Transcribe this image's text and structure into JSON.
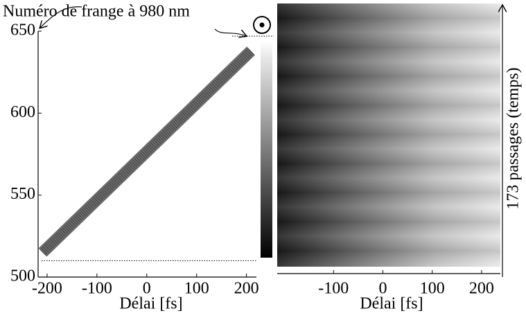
{
  "chart_data": [
    {
      "type": "line",
      "annotation": "Numéro de frange à 980 nm",
      "x": [
        -209,
        209
      ],
      "values": [
        515,
        638
      ],
      "color": "#4a4a4a",
      "xlim": [
        -218,
        220
      ],
      "ylim": [
        500,
        650
      ],
      "xticks": [
        -200,
        -100,
        0,
        100,
        200
      ],
      "yticks": [
        500,
        550,
        600,
        650
      ],
      "xlabel": "Délai [fs]",
      "hlines": [
        510,
        647
      ]
    },
    {
      "type": "heatmap",
      "xlim": [
        -214,
        238
      ],
      "xticks": [
        -100,
        0,
        100,
        200
      ],
      "xlabel": "Délai [fs]",
      "ylabel": "173 passages (temps)"
    }
  ]
}
